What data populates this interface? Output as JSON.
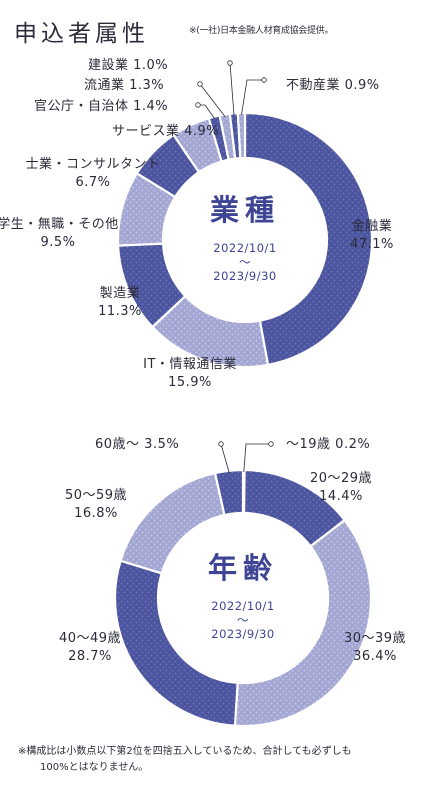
{
  "title": "申込者属性",
  "source_note": "※(一社)日本金融人材育成協会提供。",
  "footnote": {
    "line1": "※構成比は小数点以下第2位を四捨五入しているため、合計しても必ずしも",
    "line2": "100%とはなりません。"
  },
  "colors": {
    "dark": "#4b549e",
    "light": "#a3a6d3",
    "dot_on_dark": "#6870b3",
    "dot_on_light": "#c3c5e4",
    "text_accent": "#3d4594",
    "text": "#2b2b3a"
  },
  "chart_data": [
    {
      "type": "pie",
      "variant": "donut",
      "center_title": "業種",
      "center_date_from": "2022/10/1",
      "center_date_tilde": "～",
      "center_date_to": "2023/9/30",
      "slices": [
        {
          "label": "金融業",
          "value": 47.1,
          "value_text": "47.1%",
          "shade": "dark"
        },
        {
          "label": "IT・情報通信業",
          "value": 15.9,
          "value_text": "15.9%",
          "shade": "light"
        },
        {
          "label": "製造業",
          "value": 11.3,
          "value_text": "11.3%",
          "shade": "dark"
        },
        {
          "label": "学生・無職・その他",
          "value": 9.5,
          "value_text": "9.5%",
          "shade": "light"
        },
        {
          "label": "士業・コンサルタント",
          "value": 6.7,
          "value_text": "6.7%",
          "shade": "dark"
        },
        {
          "label": "サービス業",
          "value": 4.9,
          "value_text": "4.9%",
          "shade": "light"
        },
        {
          "label": "官公庁・自治体",
          "value": 1.4,
          "value_text": "1.4%",
          "shade": "dark"
        },
        {
          "label": "流通業",
          "value": 1.3,
          "value_text": "1.3%",
          "shade": "light"
        },
        {
          "label": "建設業",
          "value": 1.0,
          "value_text": "1.0%",
          "shade": "dark"
        },
        {
          "label": "不動産業",
          "value": 0.9,
          "value_text": "0.9%",
          "shade": "light"
        }
      ]
    },
    {
      "type": "pie",
      "variant": "donut",
      "center_title": "年齢",
      "center_date_from": "2022/10/1",
      "center_date_tilde": "～",
      "center_date_to": "2023/9/30",
      "slices": [
        {
          "label": "～19歳",
          "value": 0.2,
          "value_text": "0.2%",
          "shade": "light"
        },
        {
          "label": "20～29歳",
          "value": 14.4,
          "value_text": "14.4%",
          "shade": "dark"
        },
        {
          "label": "30～39歳",
          "value": 36.4,
          "value_text": "36.4%",
          "shade": "light"
        },
        {
          "label": "40～49歳",
          "value": 28.7,
          "value_text": "28.7%",
          "shade": "dark"
        },
        {
          "label": "50～59歳",
          "value": 16.8,
          "value_text": "16.8%",
          "shade": "light"
        },
        {
          "label": "60歳～",
          "value": 3.5,
          "value_text": "3.5%",
          "shade": "dark"
        }
      ]
    }
  ]
}
